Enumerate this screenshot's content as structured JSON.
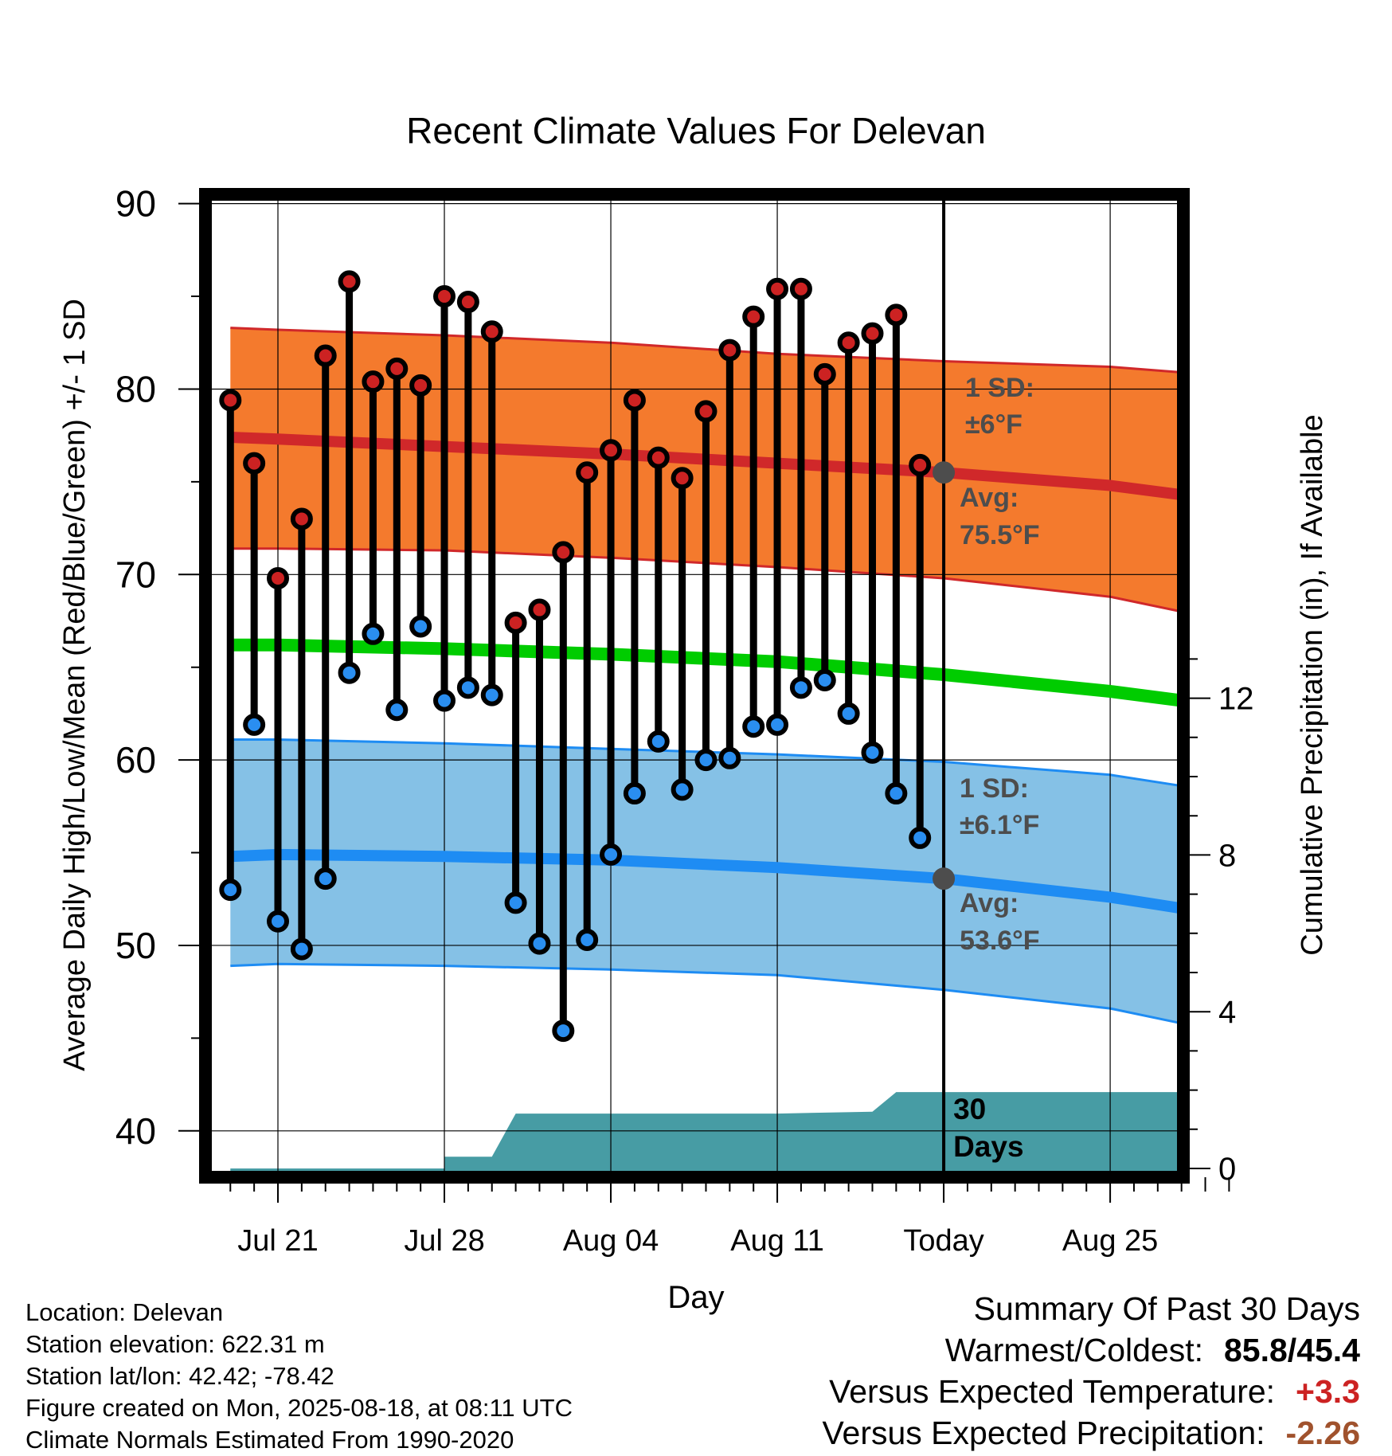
{
  "chart_data": {
    "type": "line",
    "title": "Recent Climate Values For Delevan",
    "xlabel": "Day",
    "ylabel": "Average Daily High/Low/Mean (Red/Blue/Green) +/- 1 SD",
    "ylabel_right": "Cumulative Precipitation (in), If Available",
    "ylim": [
      37.5,
      90.5
    ],
    "y2lim": [
      0,
      14
    ],
    "xlim": [
      -2,
      40
    ],
    "yticks": [
      40,
      50,
      60,
      70,
      80,
      90
    ],
    "y2ticks": [
      0,
      4,
      8,
      12
    ],
    "xticks": [
      {
        "day": 0,
        "label": "Jul 21"
      },
      {
        "day": 7,
        "label": "Jul 28"
      },
      {
        "day": 14,
        "label": "Aug 04"
      },
      {
        "day": 21,
        "label": "Aug 11"
      },
      {
        "day": 28,
        "label": "Today"
      },
      {
        "day": 35,
        "label": "Aug 25"
      }
    ],
    "today_day": 28,
    "observed": {
      "days": [
        -2,
        -1,
        0,
        1,
        2,
        3,
        4,
        5,
        6,
        7,
        8,
        9,
        10,
        11,
        12,
        13,
        14,
        15,
        16,
        17,
        18,
        19,
        20,
        21,
        22,
        23,
        24,
        25,
        26,
        27
      ],
      "highs": [
        79.4,
        76.0,
        69.8,
        73.0,
        81.8,
        85.8,
        80.4,
        81.1,
        80.2,
        85.0,
        84.7,
        83.1,
        67.4,
        68.1,
        71.2,
        75.5,
        76.7,
        79.4,
        76.3,
        75.2,
        78.8,
        82.1,
        83.9,
        85.4,
        85.4,
        80.8,
        82.5,
        83.0,
        84.0,
        75.9
      ],
      "lows": [
        53.0,
        61.9,
        51.3,
        49.8,
        53.6,
        64.7,
        66.8,
        62.7,
        67.2,
        63.2,
        63.9,
        63.5,
        52.3,
        50.1,
        45.4,
        50.3,
        54.9,
        58.2,
        61.0,
        58.4,
        60.0,
        60.1,
        61.8,
        61.9,
        63.9,
        64.3,
        62.5,
        60.4,
        58.2,
        55.8
      ]
    },
    "normals": {
      "days": [
        -2,
        0,
        7,
        14,
        21,
        28,
        35,
        38
      ],
      "high_avg": [
        77.4,
        77.3,
        76.9,
        76.5,
        76.0,
        75.5,
        74.8,
        74.3
      ],
      "high_sd_upper": [
        83.3,
        83.2,
        82.9,
        82.5,
        81.9,
        81.5,
        81.2,
        80.9
      ],
      "high_sd_lower": [
        71.4,
        71.4,
        71.3,
        70.9,
        70.4,
        69.8,
        68.8,
        68.0
      ],
      "mean_avg": [
        66.2,
        66.2,
        66.0,
        65.7,
        65.3,
        64.6,
        63.7,
        63.2
      ],
      "low_avg": [
        54.8,
        54.9,
        54.8,
        54.6,
        54.2,
        53.6,
        52.6,
        52.0
      ],
      "low_sd_upper": [
        61.1,
        61.1,
        60.9,
        60.6,
        60.3,
        59.9,
        59.2,
        58.6
      ],
      "low_sd_lower": [
        48.9,
        49.0,
        48.9,
        48.7,
        48.4,
        47.6,
        46.6,
        45.8
      ]
    },
    "precip": {
      "days": [
        7,
        9,
        10,
        21,
        25,
        26,
        38
      ],
      "cumulative_in": [
        0.3,
        0.3,
        1.4,
        1.4,
        1.45,
        1.95,
        1.95
      ],
      "label": "30 Days"
    },
    "annotations": {
      "high_sd": {
        "label": "1 SD:",
        "value": "±6°F"
      },
      "high_avg": {
        "label": "Avg:",
        "value": "75.5°F",
        "y": 75.5
      },
      "low_sd": {
        "label": "1 SD:",
        "value": "±6.1°F"
      },
      "low_avg": {
        "label": "Avg:",
        "value": "53.6°F",
        "y": 53.6
      }
    },
    "colors": {
      "high_band": "#f47a2d",
      "high_line": "#d0282a",
      "low_band": "#85c1e6",
      "low_line": "#1e8cf3",
      "mean_line": "#00cc00",
      "precip": "#479ca4",
      "high_marker": "#cc2222",
      "low_marker": "#2a8ef0",
      "annotation": "#4d4d4d"
    }
  },
  "info": {
    "location": "Location: Delevan",
    "elevation": "Station elevation: 622.31 m",
    "latlon": "Station lat/lon: 42.42; -78.42",
    "created": "Figure created on Mon, 2025-08-18, at 08:11 UTC",
    "normals": "Climate Normals Estimated From 1990-2020"
  },
  "summary": {
    "title": "Summary Of Past 30 Days",
    "warm_cold_label": "Warmest/Coldest:",
    "warm_cold_value": "85.8/45.4",
    "temp_label": "Versus Expected Temperature:",
    "temp_value": "+3.3",
    "temp_color": "#cc2222",
    "precip_label": "Versus Expected Precipitation:",
    "precip_value": "-2.26",
    "precip_color": "#a0522d"
  }
}
